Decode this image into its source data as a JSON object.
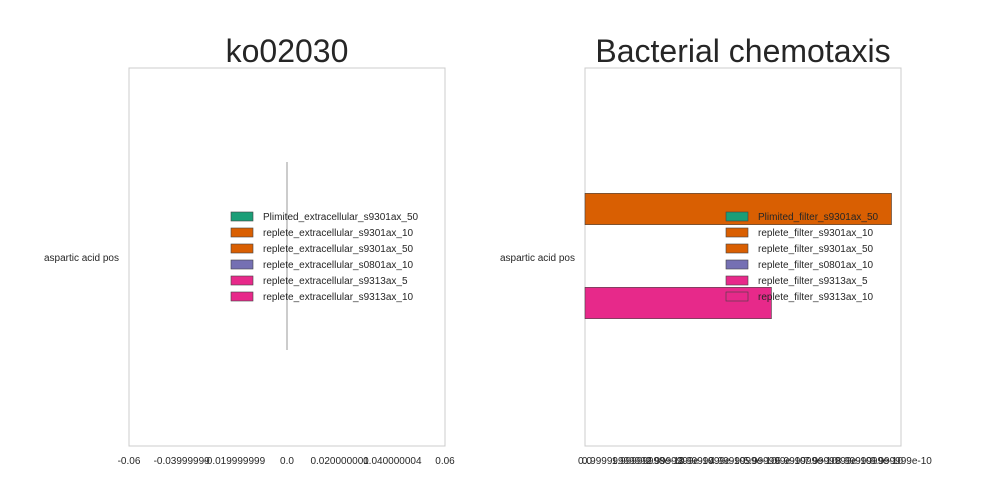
{
  "chart_data": [
    {
      "type": "bar",
      "orientation": "horizontal",
      "title": "ko02030",
      "categories": [
        "aspartic acid pos"
      ],
      "xlim": [
        -0.06,
        0.06
      ],
      "x_ticks": [
        "-0.06",
        "-0.03999999",
        "-0.019999999",
        "0.0",
        "0.020000001",
        "0.040000004",
        "0.06"
      ],
      "series": [
        {
          "name": "Plimited_extracellular_s9301ax_50",
          "values": [
            0
          ],
          "color": "#1b9e77"
        },
        {
          "name": "replete_extracellular_s9301ax_10",
          "values": [
            0
          ],
          "color": "#d95f02"
        },
        {
          "name": "replete_extracellular_s9301ax_50",
          "values": [
            0
          ],
          "color": "#d95f02"
        },
        {
          "name": "replete_extracellular_s0801ax_10",
          "values": [
            0
          ],
          "color": "#7570b3"
        },
        {
          "name": "replete_extracellular_s9313ax_5",
          "values": [
            0
          ],
          "color": "#e7298a"
        },
        {
          "name": "replete_extracellular_s9313ax_10",
          "values": [
            0
          ],
          "color": "#e7298a"
        }
      ],
      "grid": true,
      "legend": "center-right"
    },
    {
      "type": "bar",
      "orientation": "horizontal",
      "title": "Bacterial chemotaxis",
      "categories": [
        "aspartic acid pos"
      ],
      "xlim": [
        0,
        1e-09
      ],
      "x_ticks": [
        "0.0",
        "0.99999999999",
        "1.99999998e-10",
        "2.9999999e-10",
        "3.9999999e-10",
        "4.9999999e-10",
        "5.999999e-10",
        "6.999999e-10",
        "7.9999999e-10",
        "8.9999999e-10",
        "9.999999e-10"
      ],
      "series": [
        {
          "name": "Plimited_filter_s9301ax_50",
          "values": [
            0
          ],
          "color": "#1b9e77"
        },
        {
          "name": "replete_filter_s9301ax_10",
          "values": [
            9.7e-10
          ],
          "color": "#d95f02"
        },
        {
          "name": "replete_filter_s9301ax_50",
          "values": [
            0
          ],
          "color": "#d95f02"
        },
        {
          "name": "replete_filter_s0801ax_10",
          "values": [
            0
          ],
          "color": "#7570b3"
        },
        {
          "name": "replete_filter_s9313ax_5",
          "values": [
            5.9e-10
          ],
          "color": "#e7298a"
        },
        {
          "name": "replete_filter_s9313ax_10",
          "values": [
            0
          ],
          "color": "#e7298a"
        }
      ],
      "grid": true,
      "legend": "center-right"
    }
  ]
}
